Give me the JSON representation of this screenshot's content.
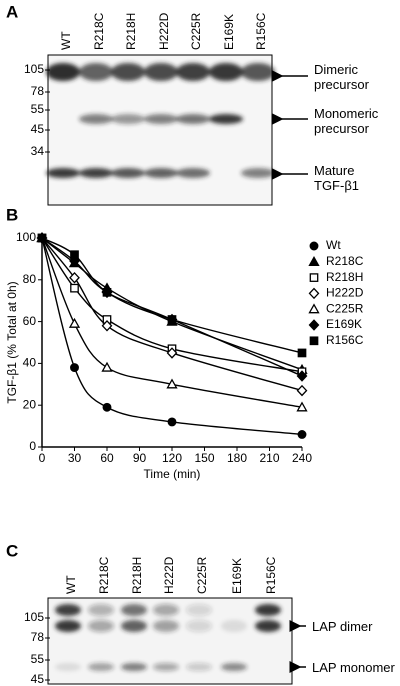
{
  "panel_a": {
    "label": "A",
    "lanes": [
      "WT",
      "R218C",
      "R218H",
      "H222D",
      "C225R",
      "E169K",
      "R156C"
    ],
    "markers": [
      105,
      78,
      55,
      45,
      34
    ],
    "annotations": [
      "Dimeric precursor",
      "Monomeric precursor",
      "Mature TGF-β1"
    ]
  },
  "chart_data": {
    "type": "line",
    "label": "B",
    "x_label": "Time (min)",
    "y_label": "TGF-β1 (% Total at 0h)",
    "x": [
      0,
      30,
      60,
      120,
      240
    ],
    "series": [
      {
        "name": "Wt",
        "color": "#000000",
        "marker": "circle",
        "values": [
          100,
          38,
          19,
          12,
          6
        ]
      },
      {
        "name": "R218C",
        "color": "#000000",
        "marker": "triangle",
        "values": [
          100,
          88,
          76,
          60,
          37
        ]
      },
      {
        "name": "R218H",
        "color": "#000000",
        "marker": "square-open",
        "values": [
          100,
          76,
          61,
          47,
          36
        ]
      },
      {
        "name": "H222D",
        "color": "#000000",
        "marker": "diamond-open",
        "values": [
          100,
          81,
          58,
          45,
          27
        ]
      },
      {
        "name": "C225R",
        "color": "#000000",
        "marker": "triangle-open",
        "values": [
          100,
          59,
          38,
          30,
          19
        ]
      },
      {
        "name": "E169K",
        "color": "#000000",
        "marker": "diamond",
        "values": [
          100,
          89,
          74,
          61,
          34
        ]
      },
      {
        "name": "R156C",
        "color": "#000000",
        "marker": "square",
        "values": [
          100,
          92,
          74,
          61,
          45
        ]
      }
    ],
    "xlim": [
      0,
      240
    ],
    "xticks": [
      0,
      30,
      60,
      90,
      120,
      150,
      180,
      210,
      240
    ],
    "ylim": [
      0,
      100
    ],
    "yticks": [
      0,
      20,
      40,
      60,
      80,
      100
    ],
    "grid": false,
    "legend": "upper right"
  },
  "panel_c": {
    "label": "C",
    "lanes": [
      "WT",
      "R218C",
      "R218H",
      "H222D",
      "C225R",
      "E169K",
      "R156C"
    ],
    "markers": [
      105,
      78,
      55,
      45
    ],
    "annotations": [
      "LAP dimer",
      "LAP monomer"
    ]
  }
}
